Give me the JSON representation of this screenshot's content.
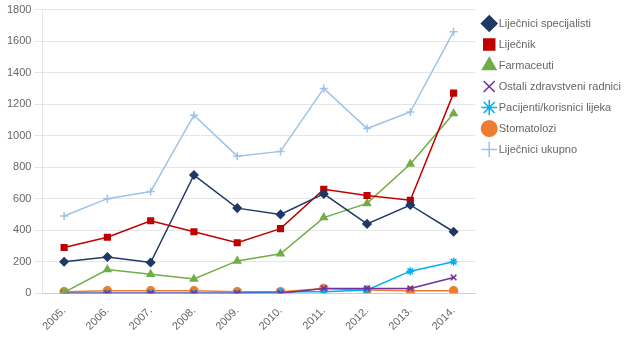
{
  "chart_data": {
    "type": "line",
    "categories": [
      "2005.",
      "2006.",
      "2007.",
      "2008.",
      "2009.",
      "2010.",
      "2011.",
      "2012.",
      "2013.",
      "2014."
    ],
    "series": [
      {
        "name": "Liječnici specijalisti",
        "color": "#1F3864",
        "marker": "diamond",
        "values": [
          200,
          230,
          195,
          750,
          540,
          500,
          630,
          440,
          560,
          390
        ]
      },
      {
        "name": "Liječnik",
        "color": "#C00000",
        "marker": "square",
        "values": [
          290,
          355,
          460,
          390,
          320,
          410,
          660,
          620,
          590,
          1270
        ]
      },
      {
        "name": "Farmaceuti",
        "color": "#70AD47",
        "marker": "triangle",
        "values": [
          5,
          150,
          120,
          90,
          205,
          250,
          480,
          570,
          820,
          1140
        ]
      },
      {
        "name": "Ostali zdravstveni radnici",
        "color": "#7030A0",
        "marker": "x",
        "values": [
          0,
          0,
          0,
          0,
          0,
          0,
          30,
          30,
          30,
          100
        ]
      },
      {
        "name": "Pacijenti/korisnici lijeka",
        "color": "#00B0F0",
        "marker": "star",
        "values": [
          0,
          0,
          0,
          0,
          0,
          10,
          10,
          20,
          140,
          200
        ]
      },
      {
        "name": "Stomatolozi",
        "color": "#ED7D31",
        "marker": "circle",
        "values": [
          10,
          15,
          15,
          15,
          10,
          10,
          30,
          20,
          15,
          15
        ]
      },
      {
        "name": "Liječnici ukupno",
        "color": "#9DC3E6",
        "marker": "plus",
        "values": [
          490,
          600,
          645,
          1130,
          870,
          900,
          1300,
          1045,
          1150,
          1660
        ]
      }
    ],
    "ylim": [
      0,
      1800
    ],
    "yticks": [
      0,
      200,
      400,
      600,
      800,
      1000,
      1200,
      1400,
      1600,
      1800
    ],
    "grid": "y",
    "legend": "right"
  }
}
